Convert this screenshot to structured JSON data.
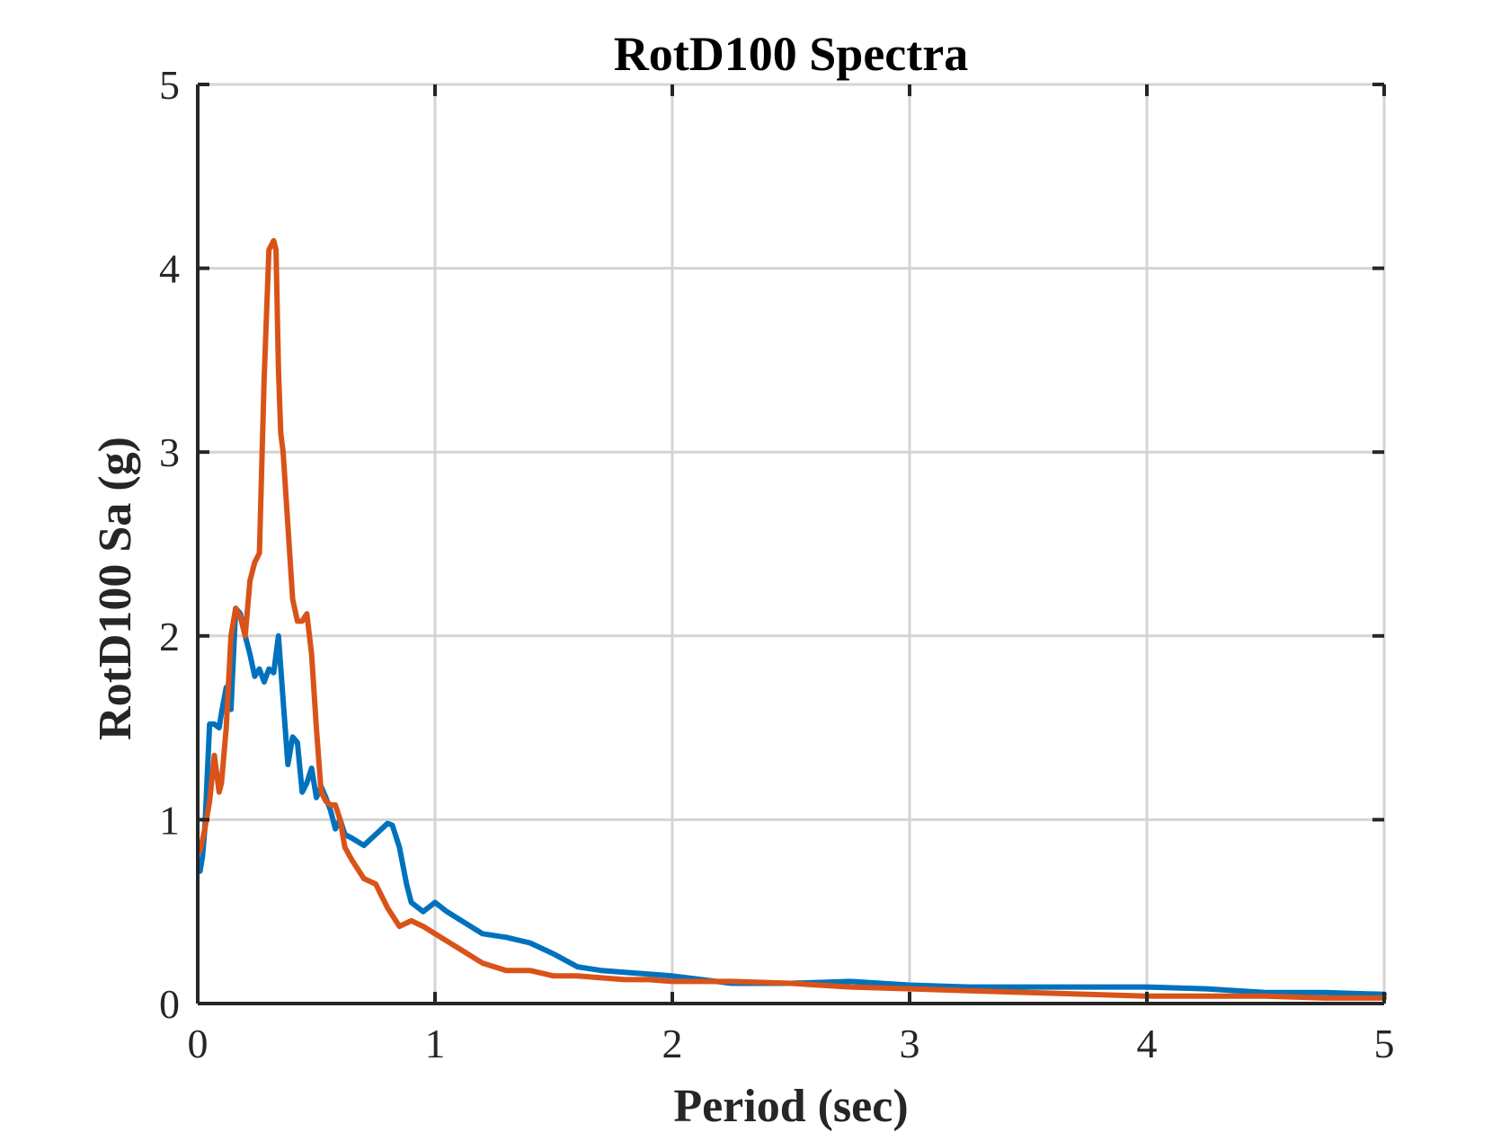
{
  "chart_data": {
    "type": "line",
    "title": "RotD100 Spectra",
    "xlabel": "Period (sec)",
    "ylabel": "RotD100 Sa (g)",
    "xlim": [
      0,
      5
    ],
    "ylim": [
      0,
      5
    ],
    "xticks": [
      "0",
      "1",
      "2",
      "3",
      "4",
      "5"
    ],
    "yticks": [
      "0",
      "1",
      "2",
      "3",
      "4",
      "5"
    ],
    "grid": true,
    "series": [
      {
        "color": "#0072BD",
        "x": [
          0.01,
          0.02,
          0.03,
          0.05,
          0.07,
          0.09,
          0.1,
          0.12,
          0.14,
          0.16,
          0.18,
          0.2,
          0.22,
          0.24,
          0.26,
          0.28,
          0.3,
          0.32,
          0.34,
          0.36,
          0.38,
          0.4,
          0.42,
          0.44,
          0.46,
          0.48,
          0.5,
          0.52,
          0.54,
          0.56,
          0.58,
          0.6,
          0.62,
          0.65,
          0.7,
          0.75,
          0.8,
          0.82,
          0.85,
          0.88,
          0.9,
          0.95,
          1.0,
          1.05,
          1.1,
          1.2,
          1.3,
          1.4,
          1.5,
          1.6,
          1.7,
          1.8,
          1.9,
          2.0,
          2.25,
          2.5,
          2.75,
          3.0,
          3.25,
          3.5,
          3.75,
          4.0,
          4.25,
          4.5,
          4.75,
          5.0
        ],
        "y": [
          0.72,
          0.8,
          0.95,
          1.52,
          1.52,
          1.5,
          1.58,
          1.72,
          1.6,
          2.15,
          2.12,
          2.0,
          1.9,
          1.78,
          1.82,
          1.75,
          1.82,
          1.8,
          2.0,
          1.65,
          1.3,
          1.45,
          1.42,
          1.15,
          1.2,
          1.28,
          1.12,
          1.18,
          1.12,
          1.05,
          0.95,
          1.0,
          0.92,
          0.9,
          0.86,
          0.92,
          0.98,
          0.97,
          0.85,
          0.65,
          0.55,
          0.5,
          0.55,
          0.5,
          0.46,
          0.38,
          0.36,
          0.33,
          0.27,
          0.2,
          0.18,
          0.17,
          0.16,
          0.15,
          0.11,
          0.11,
          0.12,
          0.1,
          0.09,
          0.09,
          0.09,
          0.09,
          0.08,
          0.06,
          0.06,
          0.05
        ]
      },
      {
        "color": "#D95319",
        "x": [
          0.01,
          0.03,
          0.05,
          0.07,
          0.09,
          0.1,
          0.12,
          0.14,
          0.16,
          0.18,
          0.2,
          0.22,
          0.24,
          0.26,
          0.28,
          0.3,
          0.32,
          0.33,
          0.34,
          0.35,
          0.36,
          0.38,
          0.4,
          0.42,
          0.44,
          0.46,
          0.48,
          0.5,
          0.52,
          0.54,
          0.56,
          0.58,
          0.6,
          0.62,
          0.65,
          0.7,
          0.75,
          0.8,
          0.85,
          0.9,
          0.95,
          1.0,
          1.1,
          1.2,
          1.3,
          1.4,
          1.5,
          1.6,
          1.7,
          1.8,
          1.9,
          2.0,
          2.25,
          2.5,
          2.75,
          3.0,
          3.25,
          3.5,
          3.75,
          4.0,
          4.25,
          4.5,
          4.75,
          5.0
        ],
        "y": [
          0.83,
          0.95,
          1.1,
          1.35,
          1.15,
          1.2,
          1.5,
          2.0,
          2.15,
          2.1,
          2.0,
          2.3,
          2.4,
          2.45,
          3.4,
          4.1,
          4.15,
          4.1,
          3.45,
          3.1,
          3.0,
          2.6,
          2.2,
          2.08,
          2.08,
          2.12,
          1.9,
          1.5,
          1.15,
          1.1,
          1.08,
          1.08,
          1.0,
          0.85,
          0.78,
          0.68,
          0.65,
          0.52,
          0.42,
          0.45,
          0.42,
          0.38,
          0.3,
          0.22,
          0.18,
          0.18,
          0.15,
          0.15,
          0.14,
          0.13,
          0.13,
          0.12,
          0.12,
          0.11,
          0.09,
          0.08,
          0.07,
          0.06,
          0.05,
          0.04,
          0.04,
          0.04,
          0.03,
          0.03
        ]
      }
    ]
  }
}
